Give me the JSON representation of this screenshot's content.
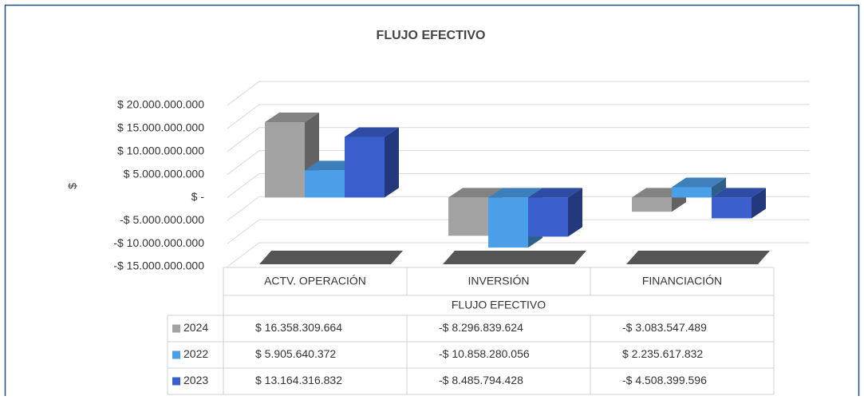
{
  "chart_data": {
    "type": "bar",
    "title": "FLUJO EFECTIVO",
    "y_label": "$",
    "x_label": "FLUJO EFECTIVO",
    "categories": [
      "ACTV. OPERACIÓN",
      "INVERSIÓN",
      "FINANCIACIÓN"
    ],
    "series": [
      {
        "name": "2024",
        "color": "#a3a3a3",
        "values": [
          16358309664,
          -8296839624,
          -3083547489
        ],
        "value_labels": [
          "$ 16.358.309.664",
          "-$ 8.296.839.624",
          "-$ 3.083.547.489"
        ]
      },
      {
        "name": "2022",
        "color": "#4b9fe8",
        "values": [
          5905640372,
          -10858280056,
          2235617832
        ],
        "value_labels": [
          "$ 5.905.640.372",
          "-$ 10.858.280.056",
          "$ 2.235.617.832"
        ]
      },
      {
        "name": "2023",
        "color": "#3a5fcd",
        "values": [
          13164316832,
          -8485794428,
          -4508399596
        ],
        "value_labels": [
          "$ 13.164.316.832",
          "-$ 8.485.794.428",
          "-$ 4.508.399.596"
        ]
      }
    ],
    "ylim": [
      -15000000000,
      20000000000
    ],
    "yticks": [
      {
        "value": 20000000000,
        "label": "$ 20.000.000.000"
      },
      {
        "value": 15000000000,
        "label": "$ 15.000.000.000"
      },
      {
        "value": 10000000000,
        "label": "$ 10.000.000.000"
      },
      {
        "value": 5000000000,
        "label": "$ 5.000.000.000"
      },
      {
        "value": 0,
        "label": "$ -"
      },
      {
        "value": -5000000000,
        "label": "-$ 5.000.000.000"
      },
      {
        "value": -10000000000,
        "label": "-$ 10.000.000.000"
      },
      {
        "value": -15000000000,
        "label": "-$ 15.000.000.000"
      }
    ],
    "grid": true,
    "legend": "table"
  }
}
